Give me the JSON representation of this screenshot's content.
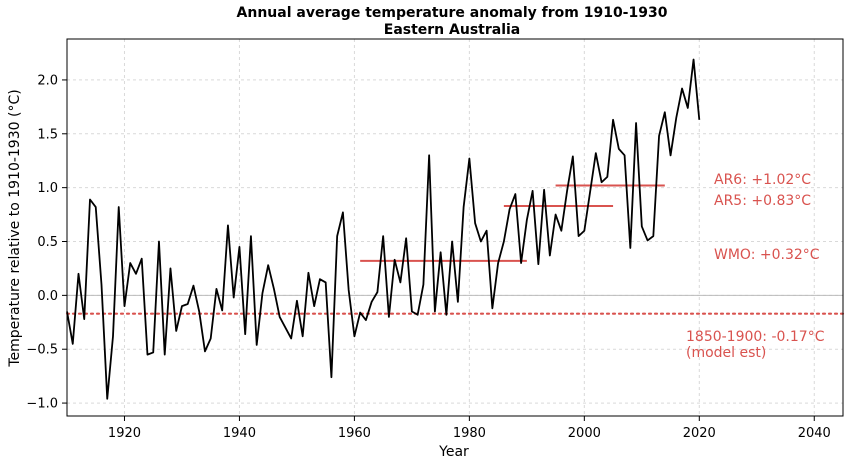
{
  "chart_data": {
    "type": "line",
    "title": "Annual average temperature anomaly from 1910-1930",
    "subtitle": "Eastern Australia",
    "xlabel": "Year",
    "ylabel": "Temperature relative to 1910-1930 (°C)",
    "xlim": [
      1910,
      2045
    ],
    "ylim": [
      -1.12,
      2.38
    ],
    "xticks": [
      1920,
      1940,
      1960,
      1980,
      2000,
      2020,
      2040
    ],
    "yticks": [
      -1.0,
      -0.5,
      0.0,
      0.5,
      1.0,
      1.5,
      2.0
    ],
    "grid": true,
    "colors": {
      "series": "#000000",
      "annotation": "#d9534f",
      "zero_line": "#bbbbbb",
      "grid": "#d9d9d9"
    },
    "series": [
      {
        "x": [
          1910,
          1911,
          1912,
          1913,
          1914,
          1915,
          1916,
          1917,
          1918,
          1919,
          1920,
          1921,
          1922,
          1923,
          1924,
          1925,
          1926,
          1927,
          1928,
          1929,
          1930,
          1931,
          1932,
          1933,
          1934,
          1935,
          1936,
          1937,
          1938,
          1939,
          1940,
          1941,
          1942,
          1943,
          1944,
          1945,
          1946,
          1947,
          1948,
          1949,
          1950,
          1951,
          1952,
          1953,
          1954,
          1955,
          1956,
          1957,
          1958,
          1959,
          1960,
          1961,
          1962,
          1963,
          1964,
          1965,
          1966,
          1967,
          1968,
          1969,
          1970,
          1971,
          1972,
          1973,
          1974,
          1975,
          1976,
          1977,
          1978,
          1979,
          1980,
          1981,
          1982,
          1983,
          1984,
          1985,
          1986,
          1987,
          1988,
          1989,
          1990,
          1991,
          1992,
          1993,
          1994,
          1995,
          1996,
          1997,
          1998,
          1999,
          2000,
          2001,
          2002,
          2003,
          2004,
          2005,
          2006,
          2007,
          2008,
          2009,
          2010,
          2011,
          2012,
          2013,
          2014,
          2015,
          2016,
          2017,
          2018,
          2019,
          2020
        ],
        "y": [
          -0.15,
          -0.45,
          0.2,
          -0.22,
          0.89,
          0.82,
          0.1,
          -0.96,
          -0.38,
          0.82,
          -0.1,
          0.3,
          0.2,
          0.34,
          -0.55,
          -0.53,
          0.5,
          -0.55,
          0.25,
          -0.33,
          -0.1,
          -0.08,
          0.09,
          -0.15,
          -0.52,
          -0.4,
          0.06,
          -0.14,
          0.65,
          -0.02,
          0.45,
          -0.36,
          0.55,
          -0.46,
          0.02,
          0.28,
          0.06,
          -0.2,
          -0.3,
          -0.4,
          -0.05,
          -0.38,
          0.21,
          -0.1,
          0.15,
          0.12,
          -0.76,
          0.55,
          0.77,
          0.05,
          -0.38,
          -0.16,
          -0.23,
          -0.06,
          0.03,
          0.55,
          -0.2,
          0.33,
          0.12,
          0.53,
          -0.15,
          -0.18,
          0.1,
          1.3,
          -0.15,
          0.4,
          -0.18,
          0.5,
          -0.06,
          0.82,
          1.27,
          0.67,
          0.5,
          0.6,
          -0.12,
          0.3,
          0.5,
          0.8,
          0.94,
          0.3,
          0.7,
          0.97,
          0.29,
          0.98,
          0.37,
          0.75,
          0.6,
          0.97,
          1.29,
          0.55,
          0.6,
          0.96,
          1.32,
          1.05,
          1.1,
          1.63,
          1.36,
          1.3,
          0.44,
          1.6,
          0.64,
          0.51,
          0.55,
          1.48,
          1.7,
          1.3,
          1.65,
          1.92,
          1.74,
          2.19,
          1.63
        ]
      }
    ],
    "reference_lines": [
      {
        "label": "WMO: +0.32°C",
        "value": 0.32,
        "x_start": 1961,
        "x_end": 1990,
        "style": "solid"
      },
      {
        "label": "AR5: +0.83°C",
        "value": 0.83,
        "x_start": 1986,
        "x_end": 2005,
        "style": "solid"
      },
      {
        "label": "AR6: +1.02°C",
        "value": 1.02,
        "x_start": 1995,
        "x_end": 2014,
        "style": "solid"
      },
      {
        "label": "1850-1900: -0.17°C",
        "label_line2": "(model est)",
        "value": -0.17,
        "x_start": 1910,
        "x_end": 2045,
        "style": "dotted"
      }
    ]
  }
}
